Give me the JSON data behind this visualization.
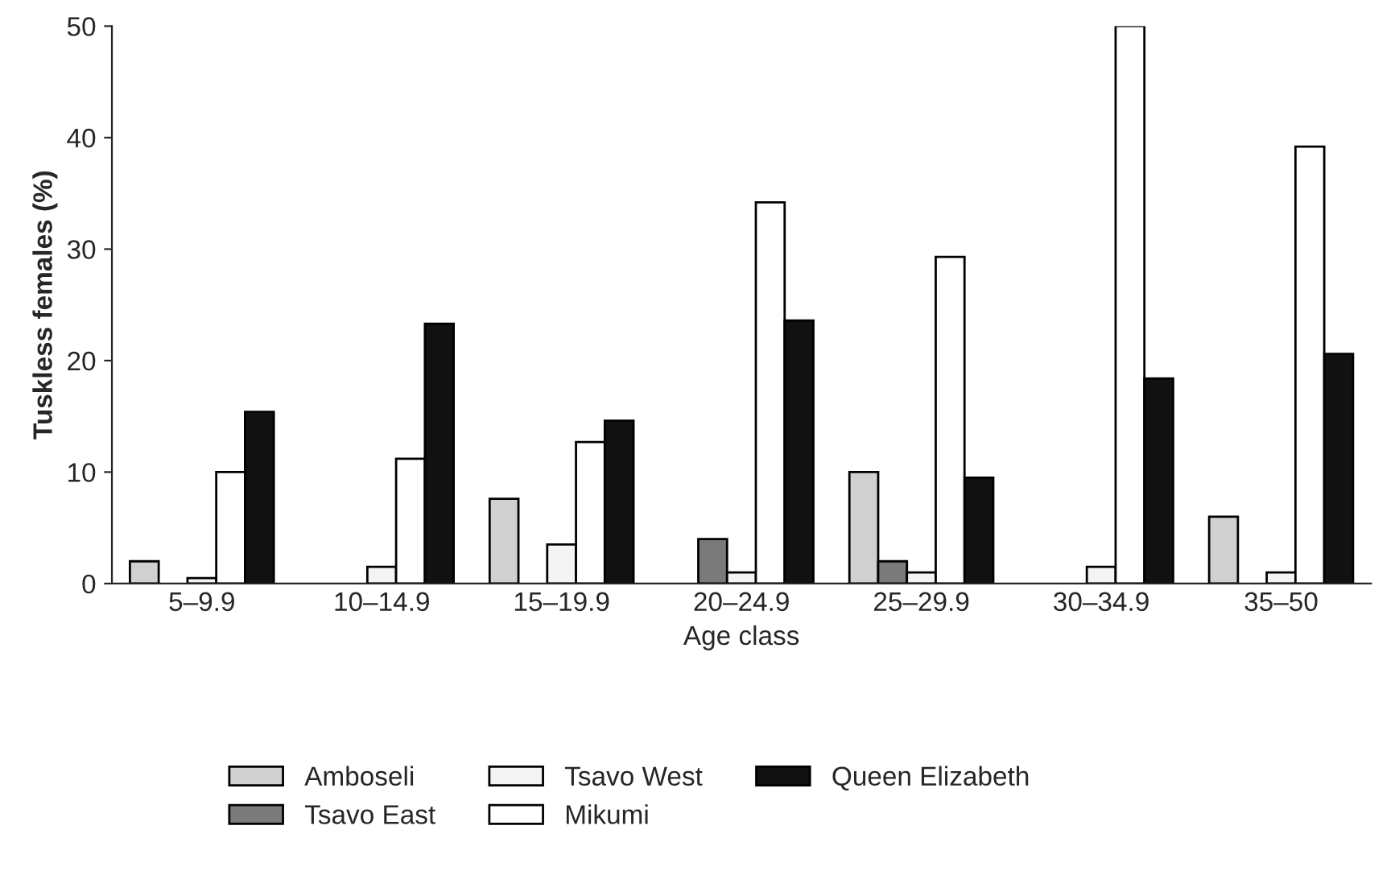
{
  "chart_data": {
    "type": "bar",
    "xlabel": "Age class",
    "ylabel": "Tuskless females (%)",
    "categories": [
      "5–9.9",
      "10–14.9",
      "15–19.9",
      "20–24.9",
      "25–29.9",
      "30–34.9",
      "35–50"
    ],
    "series": [
      {
        "name": "Amboseli",
        "color": "#d0d0d0",
        "values": [
          2,
          null,
          7.6,
          null,
          10,
          null,
          6
        ]
      },
      {
        "name": "Tsavo East",
        "color": "#7a7a7a",
        "values": [
          null,
          null,
          null,
          4,
          2,
          null,
          null
        ]
      },
      {
        "name": "Tsavo West",
        "color": "#f4f4f4",
        "values": [
          0.5,
          1.5,
          3.5,
          1,
          1,
          1.5,
          1
        ]
      },
      {
        "name": "Mikumi",
        "color": "#ffffff",
        "values": [
          10,
          11.2,
          12.7,
          34.2,
          29.3,
          50,
          39.2
        ]
      },
      {
        "name": "Queen Elizabeth",
        "color": "#111111",
        "values": [
          15.4,
          23.3,
          14.6,
          23.6,
          9.5,
          18.4,
          20.6
        ]
      }
    ],
    "ylim": [
      0,
      50
    ],
    "yticks": [
      0,
      10,
      20,
      30,
      40,
      50
    ],
    "grid": false,
    "legend": "bottom"
  }
}
